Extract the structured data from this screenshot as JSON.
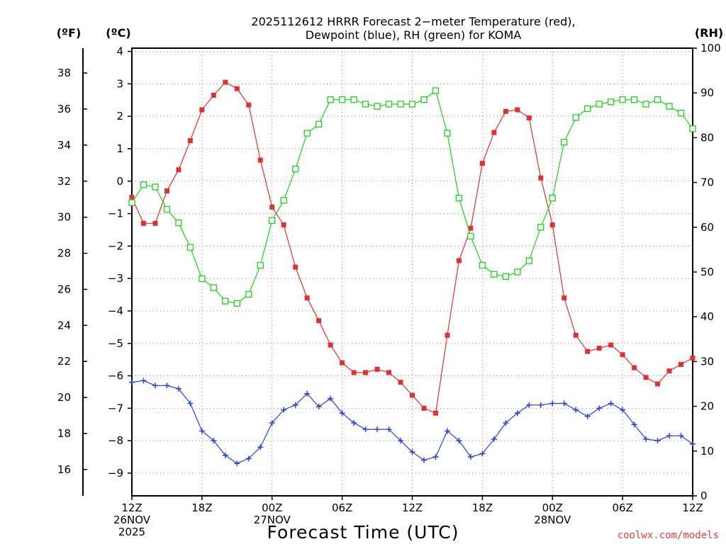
{
  "chart_data": {
    "type": "line",
    "title": [
      "2025112612 HRRR Forecast 2−meter Temperature (red),",
      "Dewpoint (blue), RH (green) for KOMA"
    ],
    "units": {
      "fahrenheit": "(ºF)",
      "celsius": "(ºC)",
      "rh": "(RH)"
    },
    "xlabel": "Forecast Time (UTC)",
    "credit": "coolwx.com/models",
    "x_ticks": [
      {
        "hour": 0,
        "lines": [
          "12Z",
          "26NOV",
          "2025"
        ]
      },
      {
        "hour": 6,
        "lines": [
          "18Z"
        ]
      },
      {
        "hour": 12,
        "lines": [
          "00Z",
          "27NOV"
        ]
      },
      {
        "hour": 18,
        "lines": [
          "06Z"
        ]
      },
      {
        "hour": 24,
        "lines": [
          "12Z"
        ]
      },
      {
        "hour": 30,
        "lines": [
          "18Z"
        ]
      },
      {
        "hour": 36,
        "lines": [
          "00Z",
          "28NOV"
        ]
      },
      {
        "hour": 42,
        "lines": [
          "06Z"
        ]
      },
      {
        "hour": 48,
        "lines": [
          "12Z"
        ]
      }
    ],
    "xlim_hours": [
      0,
      48
    ],
    "y_celsius": {
      "ylim": [
        -9.7,
        4.1
      ],
      "ticks": [
        "4",
        "3",
        "2",
        "1",
        "0",
        "−1",
        "−2",
        "−3",
        "−4",
        "−5",
        "−6",
        "−7",
        "−8",
        "−9"
      ]
    },
    "y_fahrenheit": {
      "ticks": [
        "38",
        "36",
        "34",
        "32",
        "30",
        "28",
        "26",
        "24",
        "22",
        "20",
        "18",
        "16"
      ]
    },
    "y_rh": {
      "ylim": [
        0,
        100
      ],
      "ticks": [
        "100",
        "90",
        "80",
        "70",
        "60",
        "50",
        "40",
        "30",
        "20",
        "10",
        "0"
      ]
    },
    "grid": true,
    "series": [
      {
        "name": "Temperature",
        "color": "#e03030",
        "marker": "filled-square",
        "axis": "celsius",
        "values": [
          -0.5,
          -1.3,
          -1.3,
          -0.3,
          0.35,
          1.25,
          2.2,
          2.65,
          3.05,
          2.85,
          2.35,
          0.65,
          -0.8,
          -1.35,
          -2.65,
          -3.6,
          -4.3,
          -5.05,
          -5.6,
          -5.9,
          -5.9,
          -5.8,
          -5.9,
          -6.2,
          -6.6,
          -7.0,
          -7.15,
          -4.75,
          -2.45,
          -1.45,
          0.55,
          1.5,
          2.15,
          2.2,
          1.95,
          0.1,
          -1.35,
          -3.6,
          -4.75,
          -5.25,
          -5.15,
          -5.05,
          -5.35,
          -5.75,
          -6.05,
          -6.25,
          -5.85,
          -5.65,
          -5.45
        ]
      },
      {
        "name": "Dewpoint",
        "color": "#2840e0",
        "marker": "plus",
        "axis": "celsius",
        "values": [
          -6.2,
          -6.15,
          -6.3,
          -6.3,
          -6.4,
          -6.85,
          -7.7,
          -8.0,
          -8.45,
          -8.7,
          -8.55,
          -8.2,
          -7.45,
          -7.05,
          -6.9,
          -6.55,
          -6.95,
          -6.7,
          -7.15,
          -7.45,
          -7.65,
          -7.65,
          -7.65,
          -8.0,
          -8.35,
          -8.6,
          -8.5,
          -7.7,
          -8.0,
          -8.5,
          -8.4,
          -7.95,
          -7.45,
          -7.15,
          -6.9,
          -6.9,
          -6.85,
          -6.85,
          -7.05,
          -7.25,
          -7.0,
          -6.85,
          -7.05,
          -7.5,
          -7.95,
          -8.0,
          -7.85,
          -7.85,
          -8.1
        ]
      },
      {
        "name": "RH",
        "color": "#20d020",
        "marker": "open-square",
        "axis": "rh",
        "values": [
          65.5,
          69.5,
          69,
          64,
          61,
          55.5,
          48.5,
          46.5,
          43.5,
          43,
          45,
          51.5,
          61.5,
          66,
          73,
          81,
          83,
          88.5,
          88.5,
          88.5,
          87.5,
          87,
          87.5,
          87.5,
          87.5,
          88.5,
          90.5,
          81,
          66.5,
          58,
          51.5,
          49.5,
          49,
          50,
          52.5,
          60,
          66.5,
          79,
          84.5,
          86.5,
          87.5,
          88,
          88.5,
          88.5,
          87.5,
          88.5,
          87,
          85.5,
          82
        ]
      }
    ]
  }
}
